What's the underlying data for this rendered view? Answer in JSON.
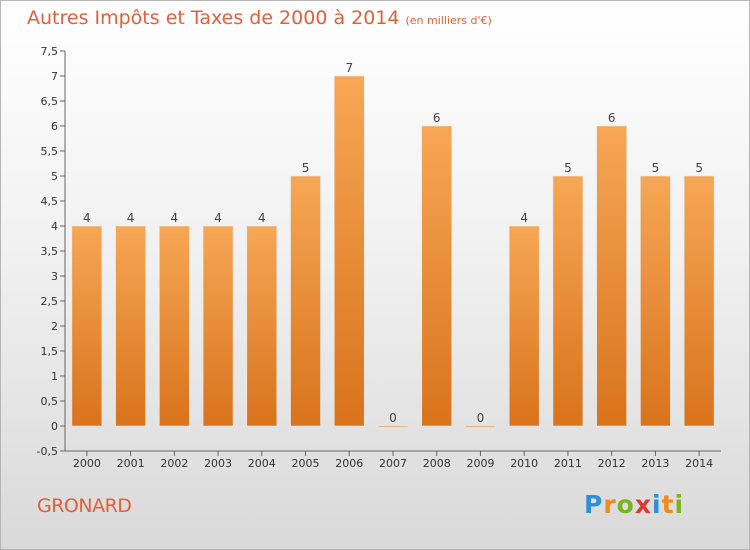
{
  "chart_data": {
    "type": "bar",
    "title": "Autres Impôts et Taxes de 2000 à 2014",
    "unit_note": "(en milliers d'€)",
    "categories": [
      "2000",
      "2001",
      "2002",
      "2003",
      "2004",
      "2005",
      "2006",
      "2007",
      "2008",
      "2009",
      "2010",
      "2011",
      "2012",
      "2013",
      "2014"
    ],
    "values": [
      4,
      4,
      4,
      4,
      4,
      5,
      7,
      0,
      6,
      0,
      4,
      5,
      6,
      5,
      5
    ],
    "data_labels": [
      "4",
      "4",
      "4",
      "4",
      "4",
      "5",
      "7",
      "0",
      "6",
      "0",
      "4",
      "5",
      "6",
      "5",
      "5"
    ],
    "y_ticks": [
      "-0,5",
      "0",
      "0,5",
      "1",
      "1,5",
      "2",
      "2,5",
      "3",
      "3,5",
      "4",
      "4,5",
      "5",
      "5,5",
      "6",
      "6,5",
      "7",
      "7,5"
    ],
    "y_tick_values": [
      -0.5,
      0,
      0.5,
      1,
      1.5,
      2,
      2.5,
      3,
      3.5,
      4,
      4.5,
      5,
      5.5,
      6,
      6.5,
      7,
      7.5
    ],
    "ylim": [
      -0.5,
      7.5
    ],
    "xlabel": "",
    "ylabel": "",
    "grid": false,
    "bar_color": "#f0953f",
    "bar_color_dark": "#d9731c"
  },
  "footer": {
    "place": "GRONARD",
    "logo_letters": [
      "P",
      "r",
      "o",
      "x",
      "i",
      "t",
      "i"
    ]
  }
}
